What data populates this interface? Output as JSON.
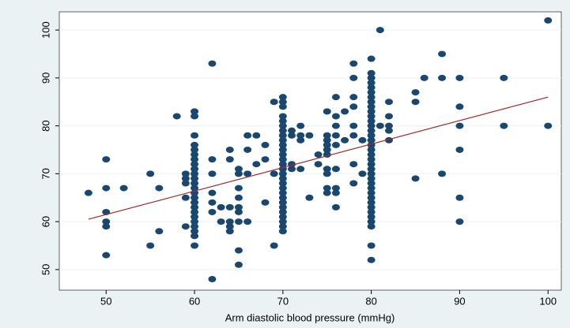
{
  "chart_data": {
    "type": "scatter",
    "x_label": "Arm diastolic blood pressure (mmHg)",
    "xlim": [
      44.7,
      101.5
    ],
    "ylim": [
      45.7,
      103.8
    ],
    "xticks": [
      50,
      60,
      70,
      80,
      90,
      100
    ],
    "yticks": [
      50,
      60,
      70,
      80,
      90,
      100
    ],
    "grid": true,
    "series": [
      {
        "color": "#1a476f",
        "x": [
          48,
          50,
          50,
          50,
          50,
          50,
          50,
          52,
          55,
          55,
          56,
          56,
          58,
          59,
          59,
          59,
          59,
          59,
          60,
          60,
          60,
          60,
          60,
          60,
          60,
          60,
          60,
          60,
          60,
          60,
          60,
          60,
          60,
          60,
          60,
          60,
          60,
          60,
          60,
          60,
          60,
          60,
          62,
          62,
          62,
          62,
          62,
          62,
          62,
          63,
          63,
          64,
          64,
          64,
          64,
          64,
          64,
          65,
          65,
          65,
          65,
          65,
          65,
          65,
          65,
          65,
          66,
          66,
          66,
          66,
          67,
          67,
          68,
          68,
          68,
          69,
          69,
          69,
          70,
          70,
          70,
          70,
          70,
          70,
          70,
          70,
          70,
          70,
          70,
          70,
          70,
          70,
          70,
          70,
          70,
          70,
          70,
          70,
          70,
          70,
          70,
          70,
          70,
          70,
          70,
          70,
          71,
          71,
          71,
          71,
          72,
          72,
          72,
          72,
          73,
          73,
          74,
          74,
          75,
          75,
          75,
          75,
          75,
          75,
          75,
          75,
          75,
          75,
          76,
          76,
          76,
          76,
          76,
          76,
          76,
          76,
          76,
          77,
          77,
          78,
          78,
          78,
          78,
          78,
          78,
          78,
          78,
          79,
          79,
          80,
          80,
          80,
          80,
          80,
          80,
          80,
          80,
          80,
          80,
          80,
          80,
          80,
          80,
          80,
          80,
          80,
          80,
          80,
          80,
          80,
          80,
          80,
          80,
          80,
          80,
          80,
          80,
          80,
          80,
          80,
          80,
          80,
          80,
          80,
          80,
          81,
          81,
          82,
          82,
          82,
          82,
          82,
          85,
          85,
          85,
          86,
          88,
          88,
          88,
          90,
          90,
          90,
          90,
          90,
          90,
          95,
          95,
          100,
          100
        ],
        "values": [
          66,
          73,
          67,
          62,
          60,
          59,
          53,
          67,
          70,
          55,
          67,
          58,
          82,
          70,
          69,
          68,
          65,
          59,
          83,
          82,
          78,
          76,
          75,
          74,
          73,
          72,
          71,
          70,
          69,
          68,
          67,
          66,
          65,
          64,
          63,
          62,
          61,
          60,
          59,
          58,
          57,
          55,
          93,
          73,
          70,
          66,
          64,
          62,
          48,
          63,
          60,
          75,
          73,
          63,
          60,
          59,
          58,
          71,
          70,
          67,
          65,
          63,
          62,
          60,
          54,
          51,
          78,
          75,
          70,
          60,
          78,
          72,
          76,
          73,
          64,
          85,
          70,
          55,
          86,
          85,
          84,
          82,
          81,
          80,
          79,
          78,
          77,
          76,
          75,
          74,
          73,
          72,
          71,
          70,
          69,
          68,
          67,
          66,
          65,
          64,
          63,
          62,
          61,
          60,
          59,
          58,
          79,
          78,
          72,
          71,
          80,
          78,
          77,
          71,
          78,
          65,
          74,
          72,
          83,
          78,
          77,
          76,
          75,
          74,
          71,
          70,
          67,
          66,
          86,
          82,
          80,
          78,
          76,
          71,
          67,
          66,
          63,
          83,
          77,
          93,
          90,
          86,
          84,
          80,
          78,
          72,
          68,
          77,
          70,
          94,
          91,
          90,
          89,
          88,
          87,
          86,
          85,
          84,
          83,
          82,
          81,
          80,
          79,
          78,
          77,
          76,
          75,
          74,
          73,
          72,
          71,
          70,
          69,
          68,
          67,
          66,
          65,
          64,
          63,
          62,
          61,
          60,
          59,
          55,
          52,
          100,
          80,
          85,
          82,
          80,
          79,
          77,
          87,
          85,
          69,
          90,
          95,
          90,
          70,
          90,
          84,
          80,
          75,
          65,
          60,
          90,
          80,
          102,
          80
        ]
      },
      {
        "type": "line",
        "color": "#a52a2a",
        "x": [
          48,
          100
        ],
        "values": [
          60.5,
          86
        ]
      }
    ]
  }
}
